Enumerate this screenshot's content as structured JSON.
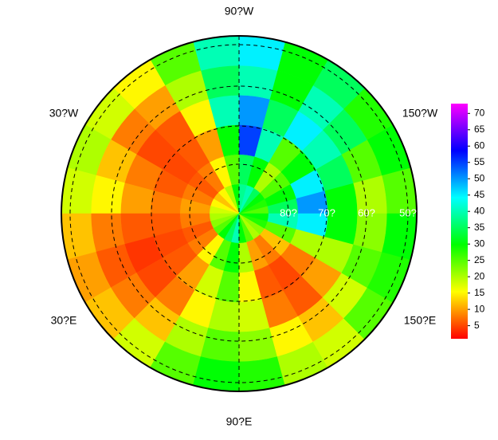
{
  "map": {
    "type": "polar-field",
    "longitude_labels": [
      "90?W",
      "30?W",
      "150?W",
      "30?E",
      "150?E",
      "90?E"
    ],
    "latitude_labels": [
      "80?",
      "70?",
      "60?",
      "50?"
    ],
    "colorbar": {
      "clim": [
        1,
        73
      ],
      "ticks": [
        5,
        10,
        15,
        20,
        25,
        30,
        35,
        40,
        45,
        50,
        55,
        60,
        65,
        70
      ]
    },
    "field": {
      "values": [
        [
          25,
          28,
          30,
          35,
          40,
          38,
          30,
          20,
          15,
          12,
          15,
          18,
          20,
          22,
          25,
          30,
          35,
          40,
          30,
          25,
          20,
          22,
          28,
          30
        ],
        [
          35,
          30,
          25,
          20,
          30,
          35,
          25,
          15,
          8,
          6,
          8,
          10,
          8,
          6,
          8,
          15,
          25,
          30,
          20,
          10,
          8,
          12,
          25,
          40
        ],
        [
          50,
          45,
          30,
          25,
          40,
          55,
          30,
          10,
          6,
          5,
          6,
          8,
          6,
          5,
          6,
          10,
          18,
          25,
          15,
          6,
          5,
          8,
          20,
          45
        ],
        [
          30,
          35,
          40,
          45,
          35,
          50,
          40,
          15,
          6,
          5,
          8,
          10,
          6,
          4,
          5,
          8,
          15,
          20,
          18,
          8,
          6,
          10,
          20,
          30
        ],
        [
          20,
          25,
          35,
          40,
          30,
          40,
          35,
          20,
          10,
          8,
          12,
          15,
          8,
          6,
          8,
          12,
          20,
          25,
          22,
          15,
          12,
          18,
          25,
          22
        ],
        [
          25,
          30,
          28,
          35,
          30,
          45,
          40,
          25,
          15,
          18,
          20,
          18,
          12,
          10,
          12,
          18,
          25,
          30,
          28,
          20,
          18,
          25,
          28,
          30
        ]
      ]
    }
  }
}
